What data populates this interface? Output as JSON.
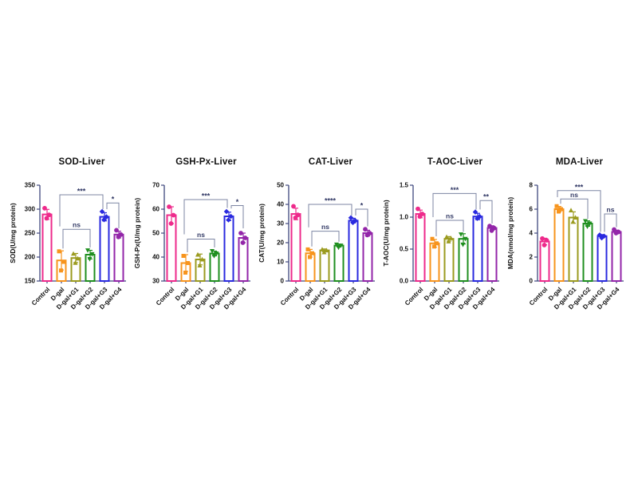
{
  "figure": {
    "background": "#ffffff",
    "categories": [
      "Control",
      "D-gal",
      "D-gal+G1",
      "D-gal+G2",
      "D-gal+G3",
      "D-gal+G4"
    ],
    "series_colors": [
      "#EE2A8B",
      "#F7941D",
      "#9B9B1F",
      "#1F8F1F",
      "#2A2ADF",
      "#9326A9"
    ],
    "marker_shapes": [
      "circle",
      "square",
      "triangle-up",
      "triangle-down",
      "diamond",
      "circle"
    ],
    "style": {
      "axis_color": "#3E477E",
      "bracket_color": "#7C85A3",
      "sig_text_color": "#333A66",
      "text_color": "#111111"
    }
  },
  "chart_data": [
    {
      "type": "bar",
      "id": "sod-liver",
      "title": "SOD-Liver",
      "ylabel": "SOD(U/mg protein)",
      "ylim": [
        150,
        350
      ],
      "yticks": [
        150,
        200,
        250,
        300,
        350
      ],
      "ytick_labels": [
        "150",
        "200",
        "250",
        "300",
        "350"
      ],
      "means": [
        289,
        193,
        198,
        205,
        284,
        247
      ],
      "dots": [
        [
          302,
          288,
          281
        ],
        [
          212,
          190,
          172
        ],
        [
          207,
          197,
          188
        ],
        [
          214,
          206,
          196
        ],
        [
          295,
          284,
          278
        ],
        [
          256,
          247,
          242
        ]
      ],
      "brackets": [
        {
          "from": 1,
          "to": 3,
          "label": "ns",
          "level": 258,
          "drop_from": 218,
          "drop_to": 220,
          "ox_from": 2,
          "ox_to": 0
        },
        {
          "from": 1,
          "to": 4,
          "label": "***",
          "level": 330,
          "drop_from": 264,
          "drop_to": 300,
          "ox_from": -2,
          "ox_to": -2
        },
        {
          "from": 4,
          "to": 5,
          "label": "*",
          "level": 313,
          "drop_from": 300,
          "drop_to": 260,
          "ox_from": 3,
          "ox_to": 0
        }
      ]
    },
    {
      "type": "bar",
      "id": "gsh-px-liver",
      "title": "GSH-Px-Liver",
      "ylabel": "GSH-Px(U/mg protein)",
      "ylim": [
        30,
        70
      ],
      "yticks": [
        30,
        40,
        50,
        60,
        70
      ],
      "ytick_labels": [
        "30",
        "40",
        "50",
        "60",
        "70"
      ],
      "means": [
        57.5,
        37.5,
        39,
        41.5,
        57,
        48
      ],
      "dots": [
        [
          61,
          57.5,
          54
        ],
        [
          40.5,
          37.5,
          33.5
        ],
        [
          41,
          39,
          36.5
        ],
        [
          42.5,
          41.5,
          40.5
        ],
        [
          59,
          57,
          55.5
        ],
        [
          50,
          48,
          46
        ]
      ],
      "brackets": [
        {
          "from": 1,
          "to": 3,
          "label": "ns",
          "level": 47.5,
          "drop_from": 42,
          "drop_to": 44,
          "ox_from": 2,
          "ox_to": 0
        },
        {
          "from": 1,
          "to": 4,
          "label": "***",
          "level": 64,
          "drop_from": 49.5,
          "drop_to": 60.5,
          "ox_from": -2,
          "ox_to": -2
        },
        {
          "from": 4,
          "to": 5,
          "label": "*",
          "level": 61.5,
          "drop_from": 60.3,
          "drop_to": 52,
          "ox_from": 3,
          "ox_to": 0
        }
      ]
    },
    {
      "type": "bar",
      "id": "cat-liver",
      "title": "CAT-Liver",
      "ylabel": "CAT(U/mg protein)",
      "ylim": [
        0,
        50
      ],
      "yticks": [
        0,
        10,
        20,
        30,
        40,
        50
      ],
      "ytick_labels": [
        "0",
        "10",
        "20",
        "30",
        "40",
        "50"
      ],
      "means": [
        35,
        14.5,
        16,
        18.5,
        31.5,
        25
      ],
      "dots": [
        [
          39,
          34.5,
          33
        ],
        [
          16.5,
          14.5,
          12.5
        ],
        [
          16.5,
          16,
          15
        ],
        [
          19,
          18.5,
          17.5
        ],
        [
          33,
          31.5,
          30.5
        ],
        [
          27,
          25,
          24
        ]
      ],
      "brackets": [
        {
          "from": 1,
          "to": 3,
          "label": "ns",
          "level": 26,
          "drop_from": 18,
          "drop_to": 20.5,
          "ox_from": 2,
          "ox_to": 0
        },
        {
          "from": 1,
          "to": 4,
          "label": "****",
          "level": 40,
          "drop_from": 28,
          "drop_to": 34.2,
          "ox_from": -2,
          "ox_to": -2
        },
        {
          "from": 4,
          "to": 5,
          "label": "*",
          "level": 37.5,
          "drop_from": 34.2,
          "drop_to": 28.5,
          "ox_from": 3,
          "ox_to": 0
        }
      ]
    },
    {
      "type": "bar",
      "id": "t-aoc-liver",
      "title": "T-AOC-Liver",
      "ylabel": "T-AOC(U/mg protein)",
      "ylim": [
        0,
        1.5
      ],
      "yticks": [
        0,
        0.5,
        1.0,
        1.5
      ],
      "ytick_labels": [
        "0.0",
        "0.5",
        "1.0",
        "1.5"
      ],
      "means": [
        1.05,
        0.59,
        0.66,
        0.66,
        1.01,
        0.83
      ],
      "dots": [
        [
          1.13,
          1.05,
          1.01
        ],
        [
          0.66,
          0.59,
          0.54
        ],
        [
          0.69,
          0.67,
          0.62
        ],
        [
          0.73,
          0.66,
          0.57
        ],
        [
          1.08,
          1.01,
          0.98
        ],
        [
          0.86,
          0.83,
          0.79
        ]
      ],
      "brackets": [
        {
          "from": 1,
          "to": 3,
          "label": "ns",
          "level": 0.95,
          "drop_from": 0.7,
          "drop_to": 0.77,
          "ox_from": 2,
          "ox_to": 0
        },
        {
          "from": 1,
          "to": 4,
          "label": "***",
          "level": 1.37,
          "drop_from": 1.0,
          "drop_to": 1.12,
          "ox_from": -2,
          "ox_to": -2
        },
        {
          "from": 4,
          "to": 5,
          "label": "**",
          "level": 1.26,
          "drop_from": 1.12,
          "drop_to": 0.9,
          "ox_from": 3,
          "ox_to": 0
        }
      ]
    },
    {
      "type": "bar",
      "id": "mda-liver",
      "title": "MDA-Liver",
      "ylabel": "MDA(nmol/mg protein)",
      "ylim": [
        0,
        8
      ],
      "yticks": [
        0,
        2,
        4,
        6,
        8
      ],
      "ytick_labels": [
        "0",
        "2",
        "4",
        "6",
        "8"
      ],
      "means": [
        3.3,
        6.0,
        5.3,
        4.8,
        3.75,
        4.1
      ],
      "dots": [
        [
          3.55,
          3.4,
          3.0
        ],
        [
          6.25,
          6.0,
          5.8
        ],
        [
          5.9,
          5.3,
          4.95
        ],
        [
          5.0,
          4.8,
          4.55
        ],
        [
          3.85,
          3.75,
          3.6
        ],
        [
          4.3,
          4.1,
          4.0
        ]
      ],
      "brackets": [
        {
          "from": 1,
          "to": 3,
          "label": "ns",
          "level": 6.85,
          "drop_from": 6.45,
          "drop_to": 5.2,
          "ox_from": 2,
          "ox_to": 0
        },
        {
          "from": 1,
          "to": 4,
          "label": "***",
          "level": 7.55,
          "drop_from": 7.0,
          "drop_to": 4.1,
          "ox_from": -2,
          "ox_to": -2
        },
        {
          "from": 4,
          "to": 5,
          "label": "ns",
          "level": 5.6,
          "drop_from": 4.1,
          "drop_to": 4.5,
          "ox_from": 3,
          "ox_to": 0
        }
      ]
    }
  ]
}
